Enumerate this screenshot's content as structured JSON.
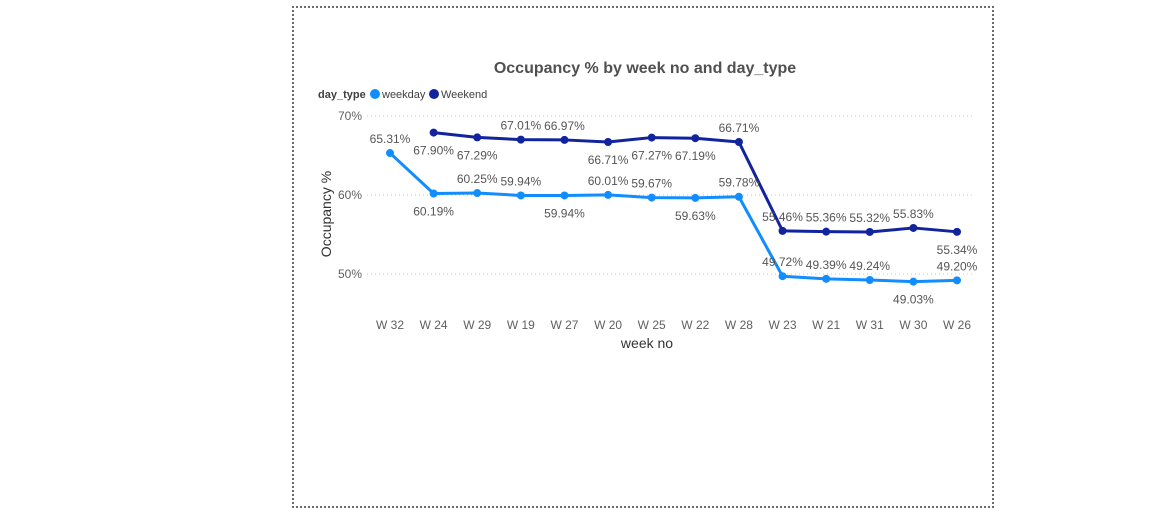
{
  "colors": {
    "weekday": "#118DFF",
    "weekend": "#12239E"
  },
  "chart_data": {
    "type": "line",
    "title": "Occupancy % by week no and day_type",
    "xlabel": "week no",
    "ylabel": "Occupancy %",
    "legend_title": "day_type",
    "legend_position": "top-left",
    "grid": true,
    "ylim": [
      45,
      71
    ],
    "y_ticks": [
      50,
      60,
      70
    ],
    "y_tick_labels": [
      "50%",
      "60%",
      "70%"
    ],
    "categories": [
      "W 32",
      "W 24",
      "W 29",
      "W 19",
      "W 27",
      "W 20",
      "W 25",
      "W 22",
      "W 28",
      "W 23",
      "W 21",
      "W 31",
      "W 30",
      "W 26"
    ],
    "series": [
      {
        "name": "weekday",
        "values": [
          65.31,
          60.19,
          60.25,
          59.94,
          59.94,
          60.01,
          59.67,
          59.63,
          59.78,
          49.72,
          49.39,
          49.24,
          49.03,
          49.2
        ],
        "labels": [
          "65.31%",
          "60.19%",
          "60.25%",
          "59.94%",
          "59.94%",
          "60.01%",
          "59.67%",
          "59.63%",
          "59.78%",
          "49.72%",
          "49.39%",
          "49.24%",
          "49.03%",
          "49.20%"
        ],
        "label_pos": [
          "above",
          "below",
          "above",
          "above",
          "below",
          "above",
          "above",
          "below",
          "above",
          "above",
          "above",
          "above",
          "below",
          "above"
        ]
      },
      {
        "name": "Weekend",
        "values": [
          null,
          67.9,
          67.29,
          67.01,
          66.97,
          66.71,
          67.27,
          67.19,
          66.71,
          55.46,
          55.36,
          55.32,
          55.83,
          55.34
        ],
        "labels": [
          null,
          "67.90%",
          "67.29%",
          "67.01%",
          "66.97%",
          "66.71%",
          "67.27%",
          "67.19%",
          "66.71%",
          "55.46%",
          "55.36%",
          "55.32%",
          "55.83%",
          "55.34%"
        ],
        "label_pos": [
          null,
          "below",
          "below",
          "above",
          "above",
          "below",
          "below",
          "below",
          "above",
          "above",
          "above",
          "above",
          "above",
          "below"
        ]
      }
    ]
  }
}
